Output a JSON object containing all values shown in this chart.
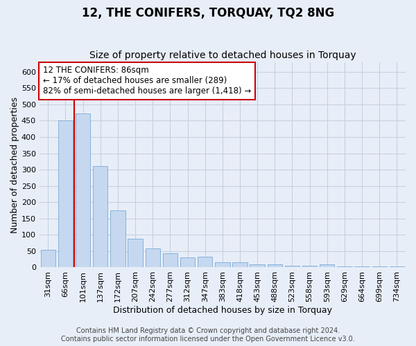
{
  "title": "12, THE CONIFERS, TORQUAY, TQ2 8NG",
  "subtitle": "Size of property relative to detached houses in Torquay",
  "xlabel": "Distribution of detached houses by size in Torquay",
  "ylabel": "Number of detached properties",
  "categories": [
    "31sqm",
    "66sqm",
    "101sqm",
    "137sqm",
    "172sqm",
    "207sqm",
    "242sqm",
    "277sqm",
    "312sqm",
    "347sqm",
    "383sqm",
    "418sqm",
    "453sqm",
    "488sqm",
    "523sqm",
    "558sqm",
    "593sqm",
    "629sqm",
    "664sqm",
    "699sqm",
    "734sqm"
  ],
  "values": [
    55,
    450,
    472,
    310,
    175,
    88,
    58,
    43,
    30,
    32,
    15,
    15,
    10,
    10,
    6,
    6,
    9,
    3,
    3,
    3,
    4
  ],
  "bar_color": "#c5d8f0",
  "bar_edge_color": "#7aaad4",
  "vline_x_pos": 1.5,
  "vline_color": "#cc0000",
  "annotation_line1": "12 THE CONIFERS: 86sqm",
  "annotation_line2": "← 17% of detached houses are smaller (289)",
  "annotation_line3": "82% of semi-detached houses are larger (1,418) →",
  "annotation_box_color": "#ffffff",
  "annotation_box_edge": "#cc0000",
  "ylim": [
    0,
    630
  ],
  "yticks": [
    0,
    50,
    100,
    150,
    200,
    250,
    300,
    350,
    400,
    450,
    500,
    550,
    600
  ],
  "footer1": "Contains HM Land Registry data © Crown copyright and database right 2024.",
  "footer2": "Contains public sector information licensed under the Open Government Licence v3.0.",
  "bg_color": "#e8eef8",
  "plot_bg_color": "#e8eef8",
  "grid_color": "#c8d0e0",
  "title_fontsize": 12,
  "subtitle_fontsize": 10,
  "xlabel_fontsize": 9,
  "ylabel_fontsize": 9,
  "tick_fontsize": 8,
  "annotation_fontsize": 8.5,
  "footer_fontsize": 7
}
